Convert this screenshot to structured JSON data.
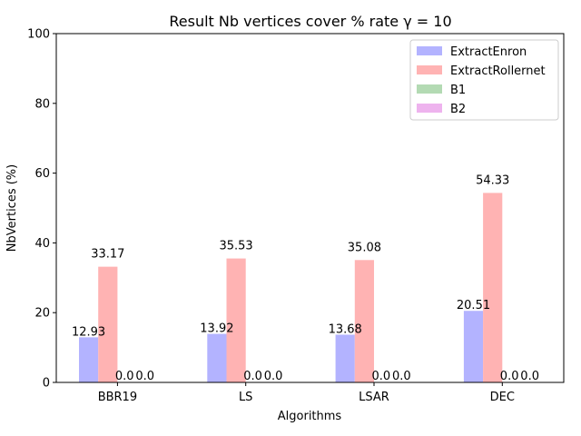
{
  "chart_data": {
    "type": "bar",
    "title": "Result Nb vertices cover  % rate γ = 10",
    "xlabel": "Algorithms",
    "ylabel": "NbVertices (%)",
    "ylim": [
      0,
      100
    ],
    "yticks": [
      "0",
      "20",
      "40",
      "60",
      "80",
      "100"
    ],
    "categories": [
      "BBR19",
      "LS",
      "LSAR",
      "DEC"
    ],
    "series": [
      {
        "name": "ExtractEnron",
        "values": [
          12.93,
          13.92,
          13.68,
          20.51
        ],
        "labels": [
          "12.93",
          "13.92",
          "13.68",
          "20.51"
        ],
        "color": "#b3b3ff"
      },
      {
        "name": "ExtractRollernet",
        "values": [
          33.17,
          35.53,
          35.08,
          54.33
        ],
        "labels": [
          "33.17",
          "35.53",
          "35.08",
          "54.33"
        ],
        "color": "#ffb3b3"
      },
      {
        "name": "B1",
        "values": [
          0.0,
          0.0,
          0.0,
          0.0
        ],
        "labels": [
          "0.0",
          "0.0",
          "0.0",
          "0.0"
        ],
        "color": "#b3dab3"
      },
      {
        "name": "B2",
        "values": [
          0.0,
          0.0,
          0.0,
          0.0
        ],
        "labels": [
          "0.0",
          "0.0",
          "0.0",
          "0.0"
        ],
        "color": "#eeb3ee"
      }
    ],
    "legend": "top-right",
    "grid": false
  }
}
